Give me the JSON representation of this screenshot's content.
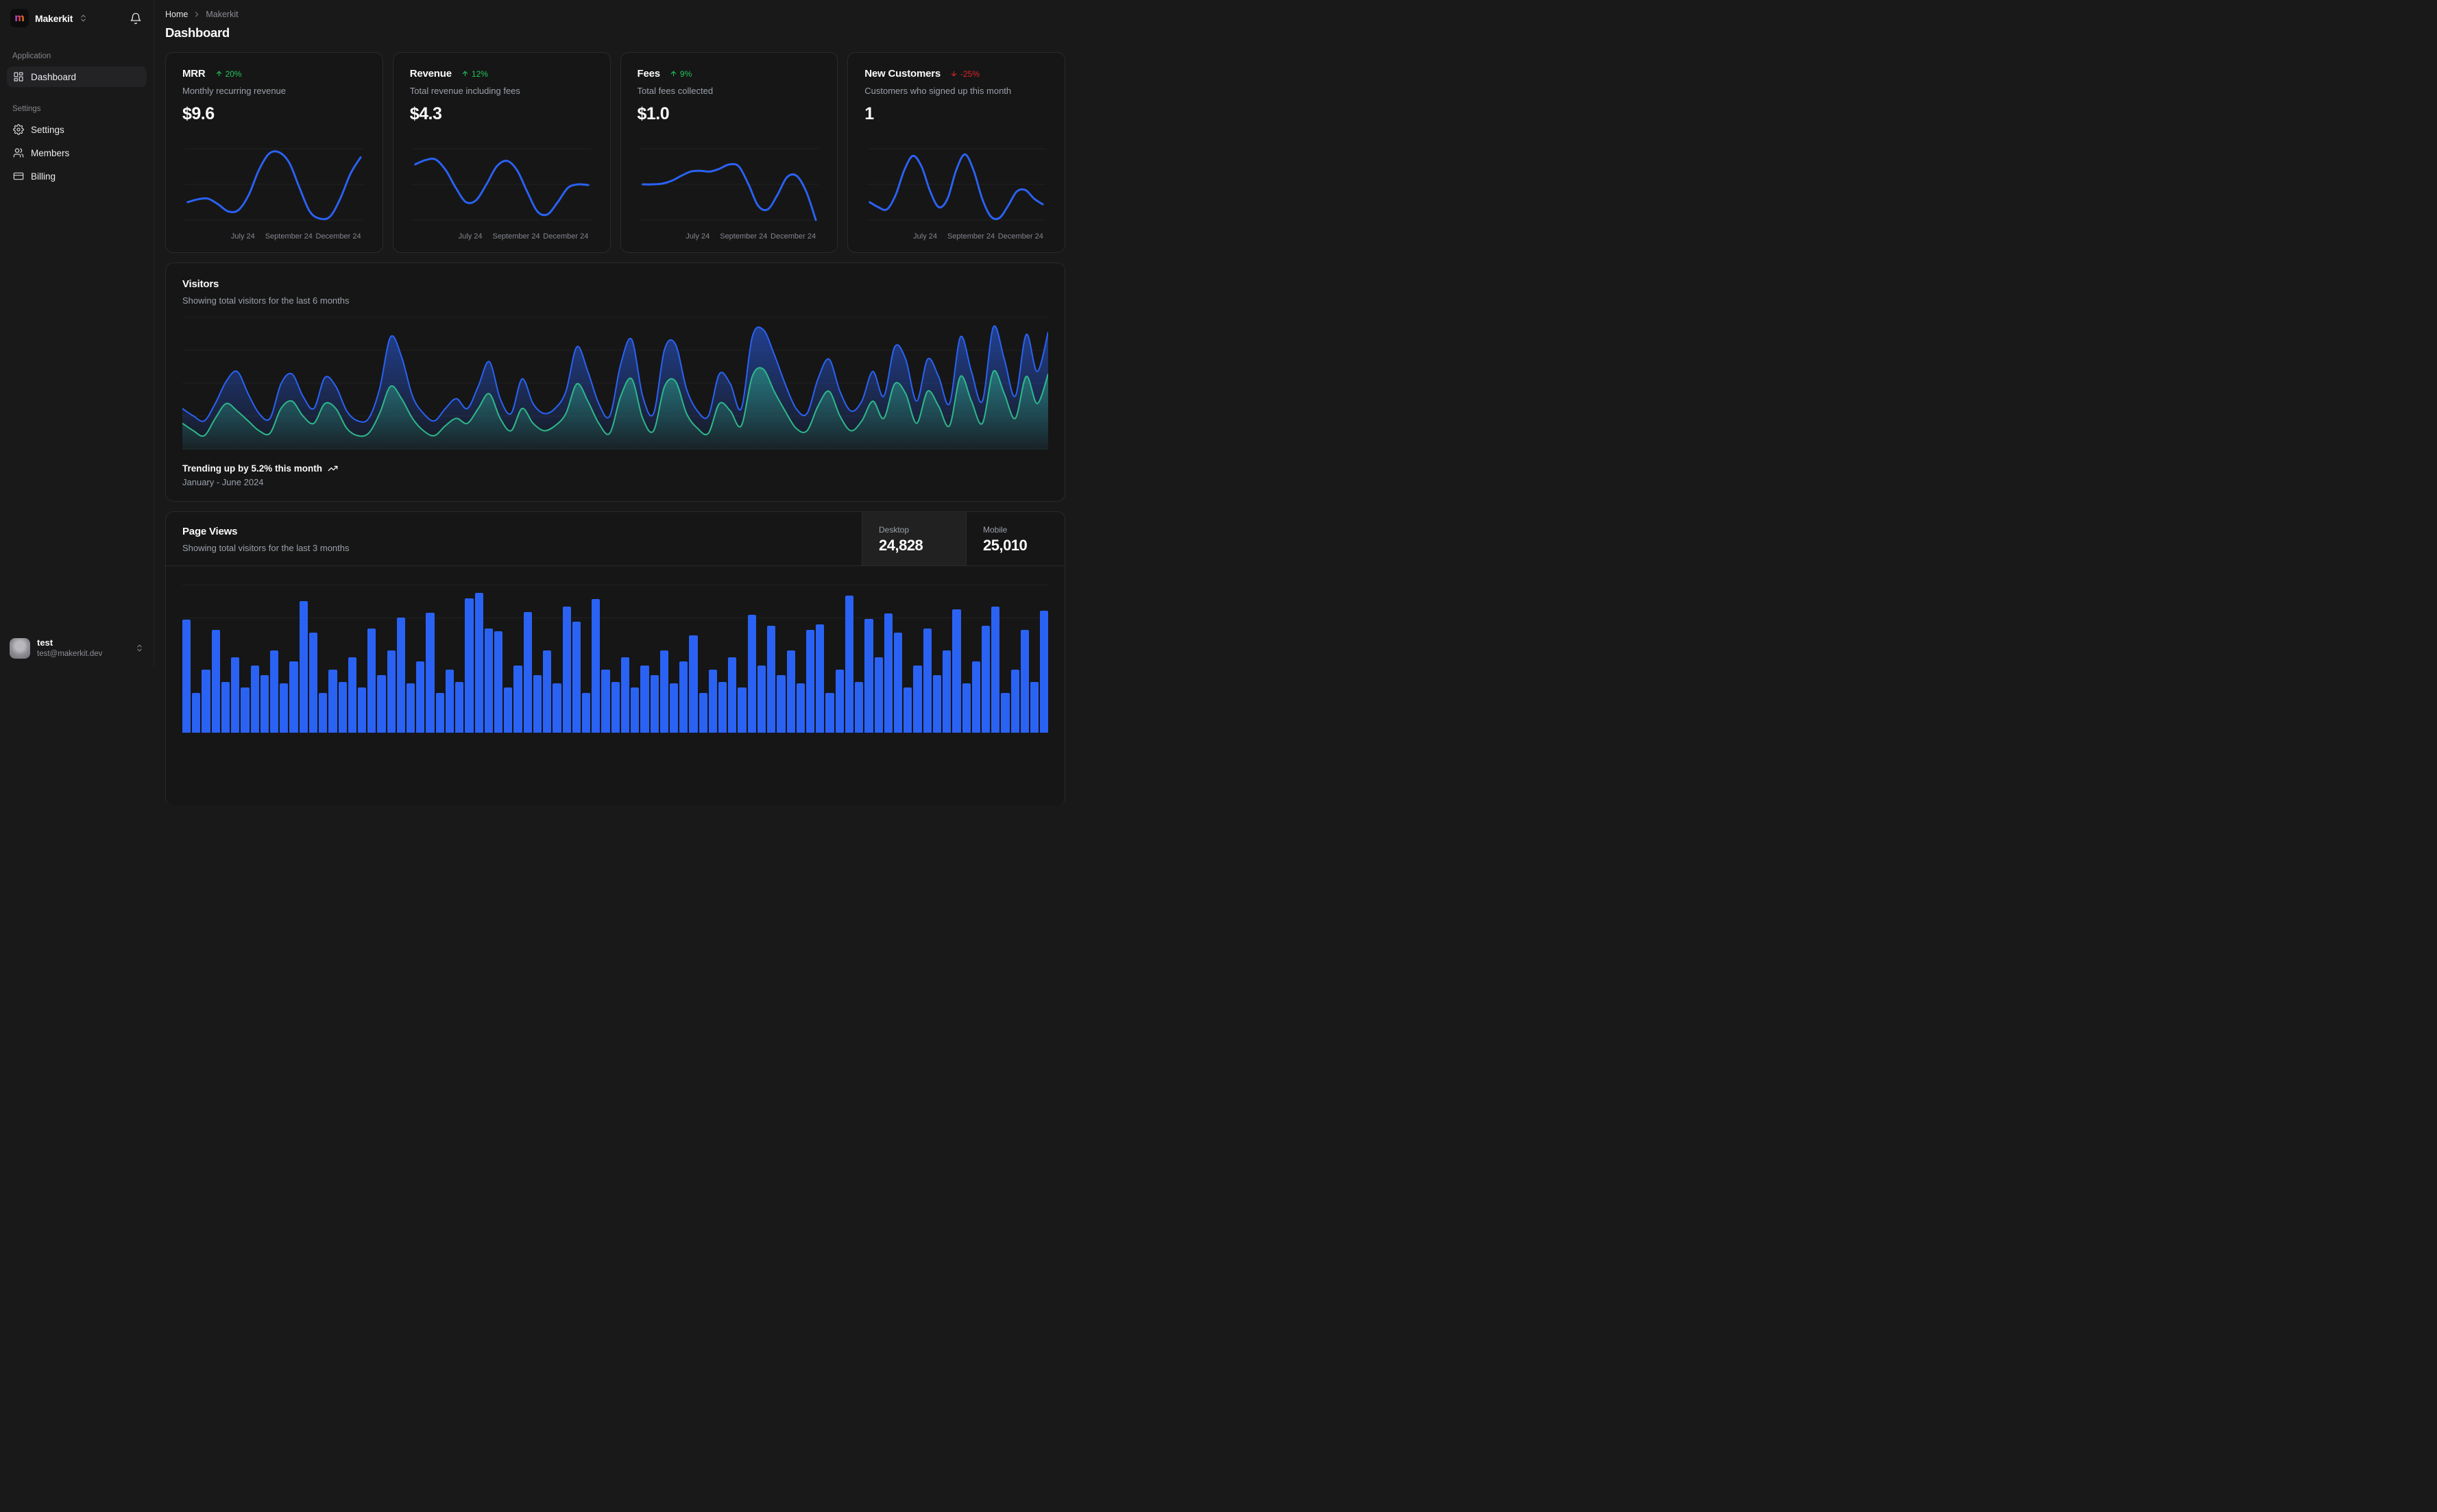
{
  "colors": {
    "accent_blue": "#2a62f4",
    "positive_green": "#22c55e",
    "negative_red": "#dc2626",
    "teal_green": "#2eb88a"
  },
  "sidebar": {
    "workspace": "Makerkit",
    "sections": [
      {
        "label": "Application",
        "items": [
          {
            "label": "Dashboard"
          }
        ]
      },
      {
        "label": "Settings",
        "items": [
          {
            "label": "Settings"
          },
          {
            "label": "Members"
          },
          {
            "label": "Billing"
          }
        ]
      }
    ],
    "user": {
      "name": "test",
      "email": "test@makerkit.dev"
    }
  },
  "header": {
    "breadcrumb": {
      "home": "Home",
      "current": "Makerkit"
    },
    "page_title": "Dashboard"
  },
  "stat_cards": [
    {
      "title": "MRR",
      "change": "20%",
      "direction": "up",
      "subtitle": "Monthly recurring revenue",
      "value": "$9.6",
      "x_labels": [
        "July 24",
        "September 24",
        "December 24"
      ]
    },
    {
      "title": "Revenue",
      "change": "12%",
      "direction": "up",
      "subtitle": "Total revenue including fees",
      "value": "$4.3",
      "x_labels": [
        "July 24",
        "September 24",
        "December 24"
      ]
    },
    {
      "title": "Fees",
      "change": "9%",
      "direction": "up",
      "subtitle": "Total fees collected",
      "value": "$1.0",
      "x_labels": [
        "July 24",
        "September 24",
        "December 24"
      ]
    },
    {
      "title": "New Customers",
      "change": "-25%",
      "direction": "down",
      "subtitle": "Customers who signed up this month",
      "value": "1",
      "x_labels": [
        "July 24",
        "September 24",
        "December 24"
      ]
    }
  ],
  "visitors": {
    "title": "Visitors",
    "subtitle": "Showing total visitors for the last 6 months",
    "footer_bold": "Trending up by 5.2% this month",
    "footer_sub": "January - June 2024"
  },
  "page_views": {
    "title": "Page Views",
    "subtitle": "Showing total visitors for the last 3 months",
    "tabs": [
      {
        "label": "Desktop",
        "value": "24,828",
        "active": true
      },
      {
        "label": "Mobile",
        "value": "25,010",
        "active": false
      }
    ]
  },
  "chart_data": [
    {
      "id": "spark-mrr",
      "type": "line",
      "title": "MRR",
      "color": "#2a62f4",
      "ylim": [
        0,
        1
      ],
      "x_labels": [
        "July 24",
        "September 24",
        "December 24"
      ],
      "series": [
        {
          "name": "MRR",
          "values": [
            0.25,
            0.29,
            0.3,
            0.22,
            0.12,
            0.14,
            0.35,
            0.7,
            0.93,
            0.95,
            0.8,
            0.45,
            0.12,
            0.02,
            0.05,
            0.3,
            0.65,
            0.88
          ]
        }
      ]
    },
    {
      "id": "spark-revenue",
      "type": "line",
      "title": "Revenue",
      "color": "#2a62f4",
      "ylim": [
        0,
        1
      ],
      "x_labels": [
        "July 24",
        "September 24",
        "December 24"
      ],
      "series": [
        {
          "name": "Revenue",
          "values": [
            0.78,
            0.84,
            0.85,
            0.7,
            0.45,
            0.25,
            0.28,
            0.5,
            0.75,
            0.83,
            0.7,
            0.4,
            0.12,
            0.08,
            0.25,
            0.45,
            0.5,
            0.49
          ]
        }
      ]
    },
    {
      "id": "spark-fees",
      "type": "line",
      "title": "Fees",
      "color": "#2a62f4",
      "ylim": [
        0,
        1
      ],
      "x_labels": [
        "July 24",
        "September 24",
        "December 24"
      ],
      "series": [
        {
          "name": "Fees",
          "values": [
            0.5,
            0.5,
            0.51,
            0.55,
            0.62,
            0.68,
            0.69,
            0.68,
            0.72,
            0.78,
            0.75,
            0.5,
            0.2,
            0.15,
            0.35,
            0.6,
            0.62,
            0.4,
            0.0
          ]
        }
      ]
    },
    {
      "id": "spark-customers",
      "type": "line",
      "title": "New Customers",
      "color": "#2a62f4",
      "ylim": [
        0,
        1
      ],
      "x_labels": [
        "July 24",
        "September 24",
        "December 24"
      ],
      "series": [
        {
          "name": "New Customers",
          "values": [
            0.25,
            0.18,
            0.15,
            0.35,
            0.7,
            0.9,
            0.75,
            0.4,
            0.18,
            0.3,
            0.7,
            0.92,
            0.7,
            0.3,
            0.05,
            0.03,
            0.2,
            0.4,
            0.42,
            0.3,
            0.22
          ]
        }
      ]
    },
    {
      "id": "visitors-area",
      "type": "area",
      "title": "Visitors",
      "x_range": "January - June 2024",
      "ylim": [
        0,
        100
      ],
      "grid": true,
      "legend": "none",
      "series": [
        {
          "name": "desktop",
          "color": "#2a62f4",
          "values": [
            30,
            24,
            20,
            34,
            52,
            60,
            42,
            26,
            22,
            50,
            58,
            40,
            30,
            55,
            48,
            28,
            20,
            22,
            46,
            88,
            72,
            40,
            26,
            20,
            30,
            38,
            30,
            48,
            68,
            38,
            26,
            54,
            34,
            26,
            30,
            44,
            80,
            60,
            34,
            24,
            66,
            86,
            40,
            26,
            78,
            82,
            46,
            28,
            24,
            58,
            50,
            30,
            88,
            94,
            74,
            50,
            30,
            26,
            54,
            70,
            44,
            28,
            36,
            60,
            40,
            80,
            70,
            36,
            70,
            56,
            34,
            88,
            60,
            36,
            96,
            70,
            40,
            90,
            60,
            92
          ]
        },
        {
          "name": "mobile",
          "color": "#2eb88a",
          "values": [
            18,
            12,
            8,
            22,
            34,
            28,
            20,
            12,
            10,
            30,
            36,
            24,
            18,
            34,
            30,
            14,
            8,
            10,
            26,
            48,
            38,
            22,
            12,
            8,
            16,
            22,
            18,
            30,
            42,
            22,
            12,
            30,
            18,
            12,
            16,
            26,
            50,
            36,
            18,
            10,
            40,
            54,
            22,
            12,
            48,
            52,
            26,
            14,
            10,
            34,
            28,
            16,
            56,
            62,
            44,
            28,
            14,
            12,
            32,
            44,
            24,
            12,
            20,
            36,
            22,
            50,
            42,
            18,
            44,
            32,
            16,
            56,
            36,
            18,
            60,
            42,
            22,
            56,
            34,
            58
          ]
        }
      ]
    },
    {
      "id": "pageviews-bars",
      "type": "bar",
      "title": "Page Views",
      "color": "#2a62f4",
      "legend": "none",
      "series": [
        {
          "name": "views",
          "values": [
            165,
            58,
            92,
            150,
            74,
            110,
            66,
            98,
            84,
            120,
            72,
            104,
            192,
            146,
            58,
            92,
            74,
            110,
            66,
            152,
            84,
            120,
            168,
            72,
            104,
            175,
            58,
            92,
            74,
            196,
            204,
            152,
            148,
            66,
            98,
            176,
            84,
            120,
            72,
            184,
            162,
            58,
            195,
            92,
            74,
            110,
            66,
            98,
            84,
            120,
            72,
            104,
            142,
            58,
            92,
            74,
            110,
            66,
            172,
            98,
            156,
            84,
            120,
            72,
            150,
            158,
            58,
            92,
            200,
            74,
            166,
            110,
            174,
            146,
            66,
            98,
            152,
            84,
            120,
            180,
            72,
            104,
            156,
            184,
            58,
            92,
            150,
            74,
            178
          ]
        }
      ]
    }
  ]
}
